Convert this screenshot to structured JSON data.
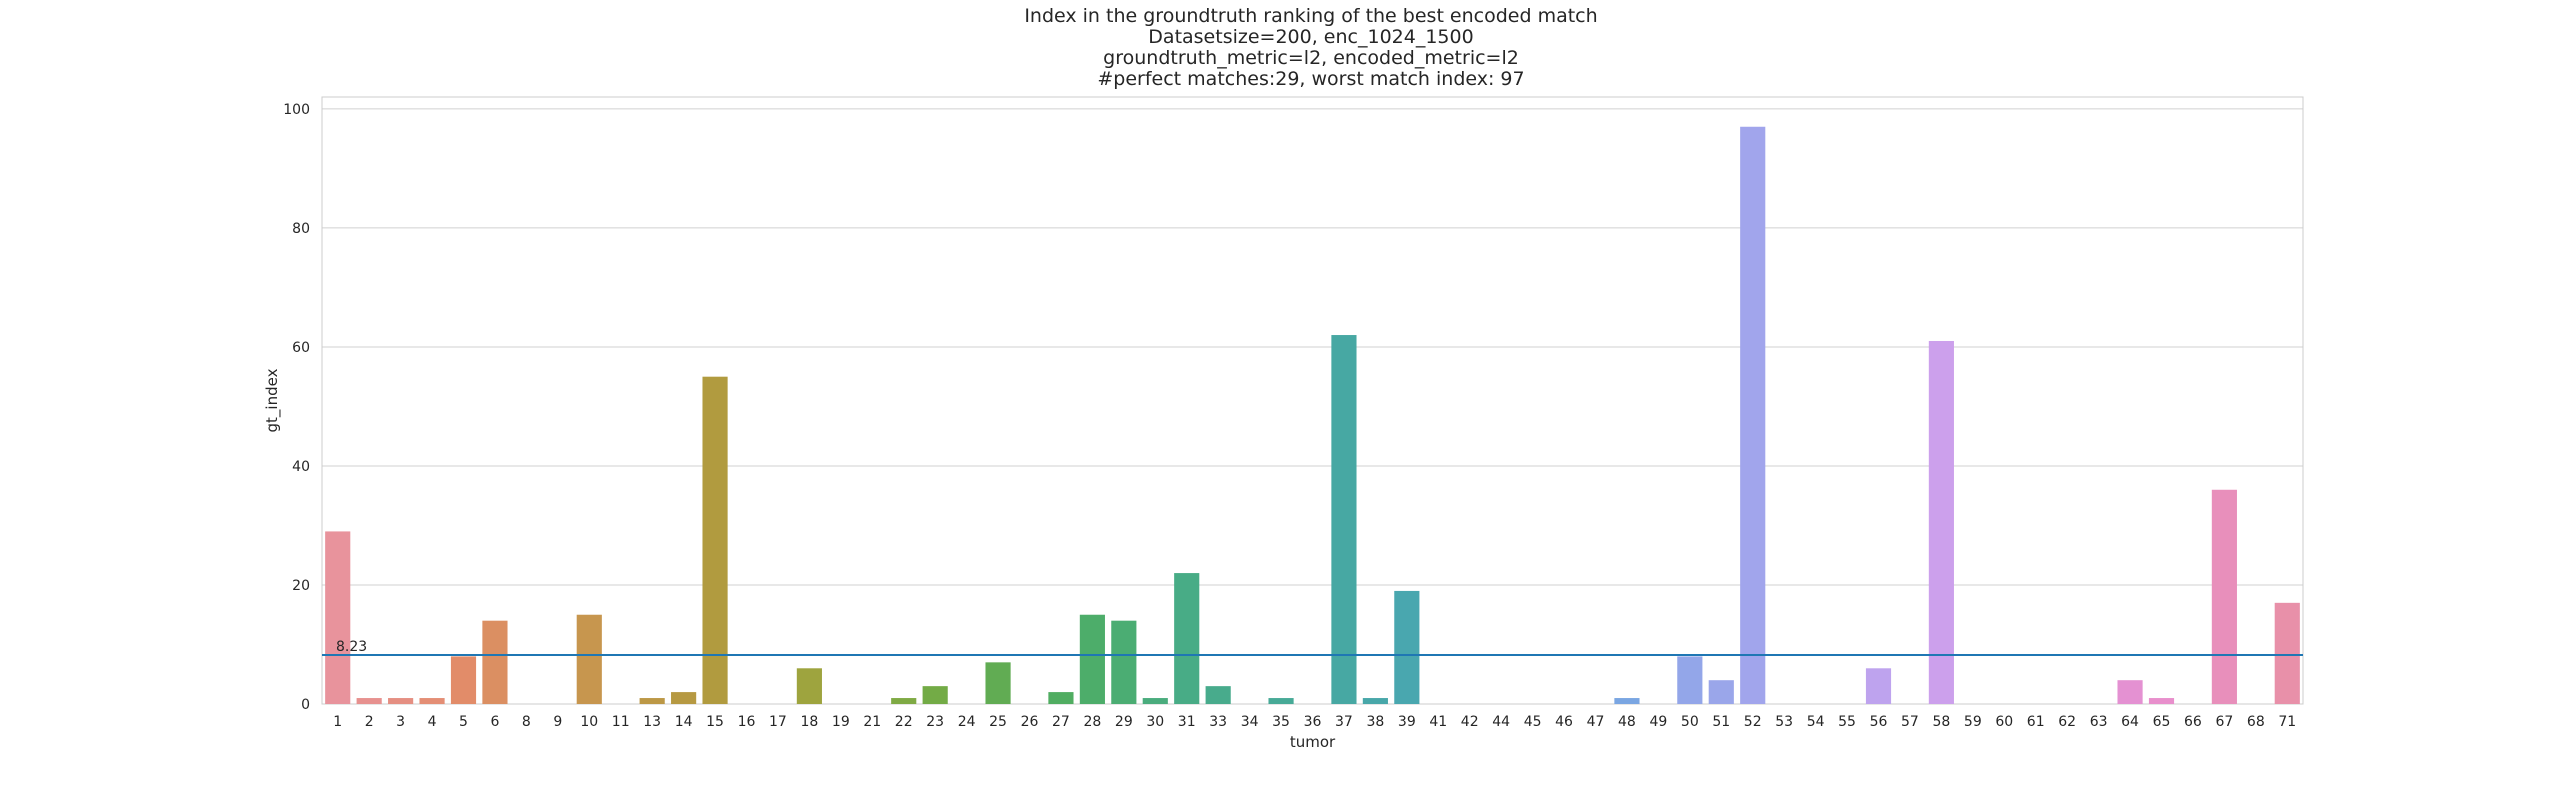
{
  "chart_data": {
    "type": "bar",
    "title_lines": [
      "Index in the groundtruth ranking of the best encoded match",
      "Datasetsize=200, enc_1024_1500",
      "groundtruth_metric=l2, encoded_metric=l2",
      "#perfect matches:29, worst match index: 97"
    ],
    "xlabel": "tumor",
    "ylabel": "gt_index",
    "ylim": [
      0,
      102
    ],
    "yticks": [
      0,
      20,
      40,
      60,
      80,
      100
    ],
    "grid": true,
    "categories": [
      "1",
      "2",
      "3",
      "4",
      "5",
      "6",
      "8",
      "9",
      "10",
      "11",
      "13",
      "14",
      "15",
      "16",
      "17",
      "18",
      "19",
      "21",
      "22",
      "23",
      "24",
      "25",
      "26",
      "27",
      "28",
      "29",
      "30",
      "31",
      "33",
      "34",
      "35",
      "36",
      "37",
      "38",
      "39",
      "41",
      "42",
      "44",
      "45",
      "46",
      "47",
      "48",
      "49",
      "50",
      "51",
      "52",
      "53",
      "54",
      "55",
      "56",
      "57",
      "58",
      "59",
      "60",
      "61",
      "62",
      "63",
      "64",
      "65",
      "66",
      "67",
      "68",
      "71"
    ],
    "values": [
      29,
      1,
      1,
      1,
      8,
      14,
      0,
      0,
      15,
      0,
      1,
      2,
      55,
      0,
      0,
      6,
      0,
      0,
      1,
      3,
      0,
      7,
      0,
      2,
      15,
      14,
      1,
      22,
      3,
      0,
      1,
      0,
      62,
      1,
      19,
      0,
      0,
      0,
      0,
      0,
      0,
      1,
      0,
      8,
      4,
      97,
      0,
      0,
      0,
      6,
      0,
      61,
      0,
      0,
      0,
      0,
      0,
      4,
      1,
      0,
      36,
      0,
      17
    ],
    "mean_line": {
      "value": 8.23,
      "label": "8.23",
      "color": "#1f77b4"
    }
  }
}
